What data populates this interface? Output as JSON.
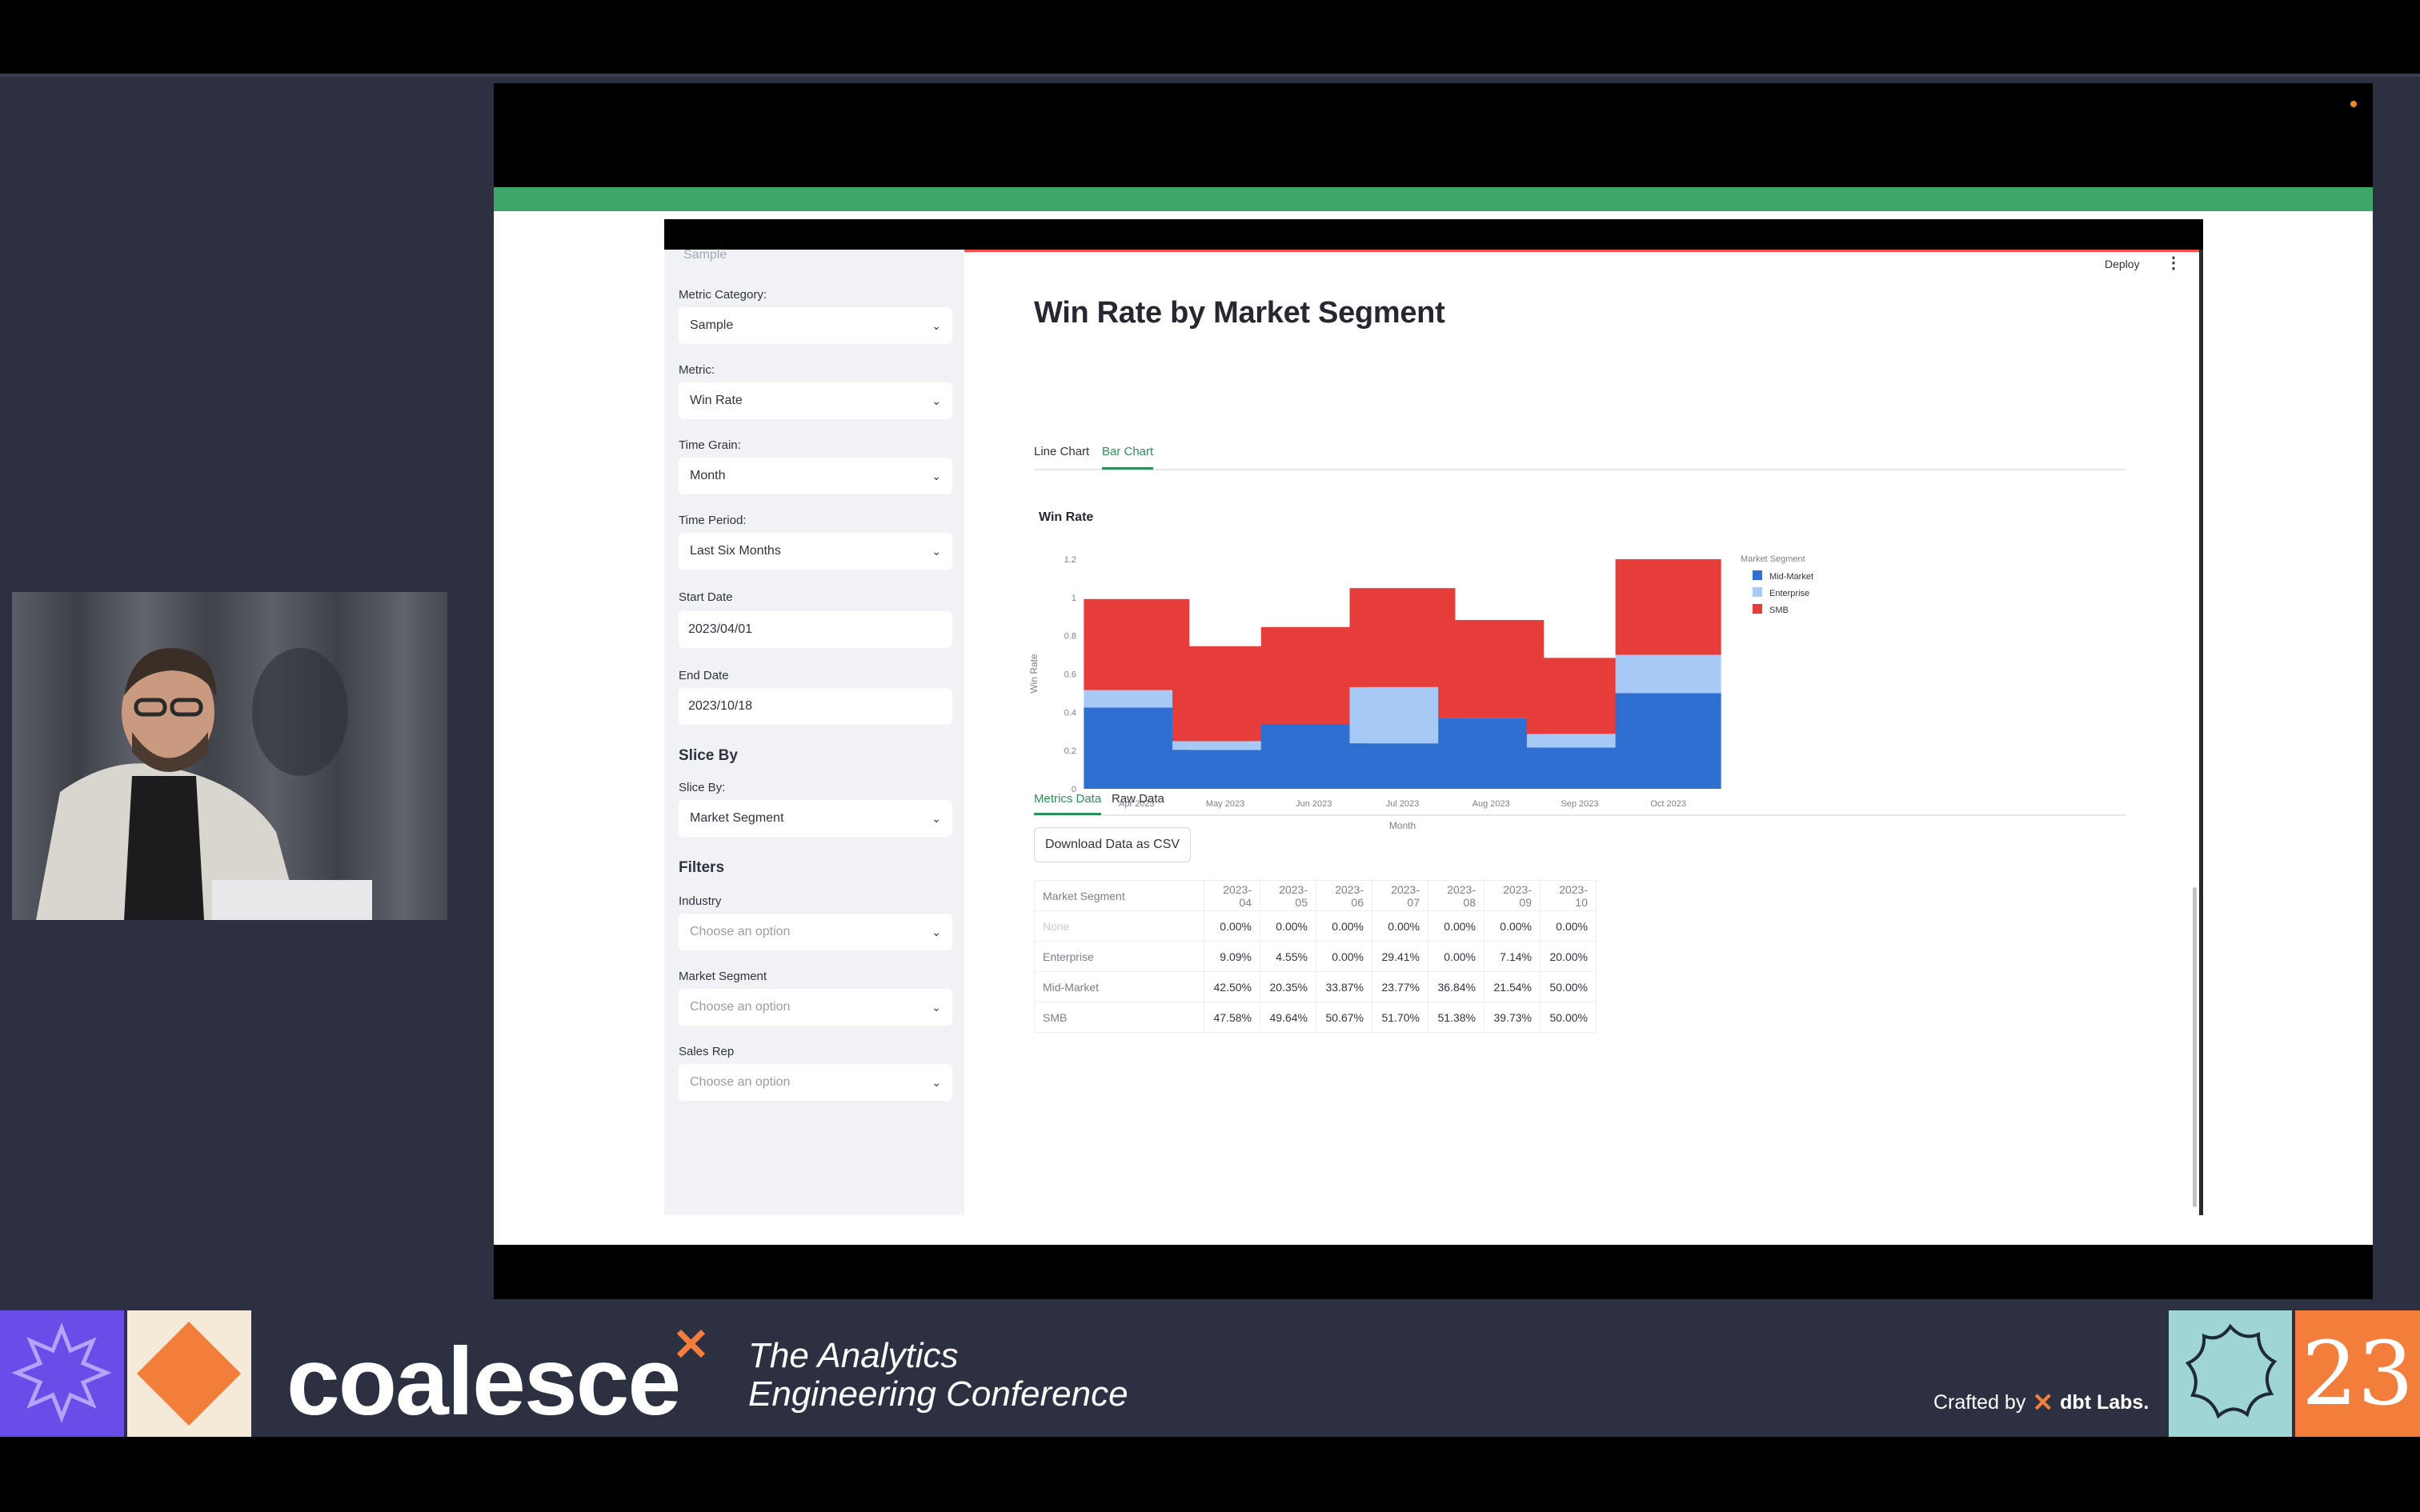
{
  "sidebar": {
    "cut_label": "Sample",
    "metric_category": {
      "label": "Metric Category:",
      "value": "Sample"
    },
    "metric": {
      "label": "Metric:",
      "value": "Win Rate"
    },
    "time_grain": {
      "label": "Time Grain:",
      "value": "Month"
    },
    "time_period": {
      "label": "Time Period:",
      "value": "Last Six Months"
    },
    "start_date": {
      "label": "Start Date",
      "value": "2023/04/01"
    },
    "end_date": {
      "label": "End Date",
      "value": "2023/10/18"
    },
    "slice_heading": "Slice By",
    "slice_by": {
      "label": "Slice By:",
      "value": "Market Segment"
    },
    "filters_heading": "Filters",
    "industry": {
      "label": "Industry",
      "placeholder": "Choose an option"
    },
    "market_segment": {
      "label": "Market Segment",
      "placeholder": "Choose an option"
    },
    "sales_rep": {
      "label": "Sales Rep",
      "placeholder": "Choose an option"
    }
  },
  "header": {
    "deploy": "Deploy",
    "menu": "⋮"
  },
  "page_title": "Win Rate by Market Segment",
  "chart_tabs": [
    {
      "label": "Line Chart",
      "active": false
    },
    {
      "label": "Bar Chart",
      "active": true
    }
  ],
  "chart_data": {
    "type": "bar",
    "stacked": true,
    "title": "Win Rate",
    "xlabel": "Month",
    "ylabel": "Win Rate",
    "categories": [
      "Apr 2023",
      "May 2023",
      "Jun 2023",
      "Jul 2023",
      "Aug 2023",
      "Sep 2023",
      "Oct 2023"
    ],
    "y_ticks": [
      "0",
      "0.2",
      "0.4",
      "0.6",
      "0.8",
      "1",
      "1.2"
    ],
    "ylim": [
      0,
      1.2
    ],
    "legend_title": "Market Segment",
    "legend_position": "right",
    "series": [
      {
        "name": "Mid-Market",
        "color": "#2e6fd1",
        "values": [
          0.425,
          0.2035,
          0.3387,
          0.2377,
          0.3684,
          0.2154,
          0.5
        ]
      },
      {
        "name": "Enterprise",
        "color": "#a7c9f5",
        "values": [
          0.0909,
          0.0455,
          0.0,
          0.2941,
          0.0,
          0.0714,
          0.2
        ]
      },
      {
        "name": "SMB",
        "color": "#e63c3a",
        "values": [
          0.4758,
          0.4964,
          0.5067,
          0.517,
          0.5138,
          0.3973,
          0.5
        ]
      }
    ]
  },
  "data_tabs": [
    {
      "label": "Metrics Data",
      "active": true
    },
    {
      "label": "Raw Data",
      "active": false
    }
  ],
  "download_button": "Download Data as CSV",
  "table": {
    "columns": [
      "Market Segment",
      "2023-04",
      "2023-05",
      "2023-06",
      "2023-07",
      "2023-08",
      "2023-09",
      "2023-10"
    ],
    "rows": [
      {
        "segment": "None",
        "values": [
          "0.00%",
          "0.00%",
          "0.00%",
          "0.00%",
          "0.00%",
          "0.00%",
          "0.00%"
        ]
      },
      {
        "segment": "Enterprise",
        "values": [
          "9.09%",
          "4.55%",
          "0.00%",
          "29.41%",
          "0.00%",
          "7.14%",
          "20.00%"
        ]
      },
      {
        "segment": "Mid-Market",
        "values": [
          "42.50%",
          "20.35%",
          "33.87%",
          "23.77%",
          "36.84%",
          "21.54%",
          "50.00%"
        ]
      },
      {
        "segment": "SMB",
        "values": [
          "47.58%",
          "49.64%",
          "50.67%",
          "51.70%",
          "51.38%",
          "39.73%",
          "50.00%"
        ]
      }
    ]
  },
  "banner": {
    "logo_text": "coalesce",
    "tagline_line1": "The Analytics",
    "tagline_line2": "Engineering Conference",
    "crafted_by": "Crafted by",
    "dbt_labs": "dbt Labs.",
    "year": "23"
  },
  "colors": {
    "accent_green": "#3fa66a",
    "brand_orange": "#f37e3b",
    "brand_purple": "#6a4ce8"
  }
}
